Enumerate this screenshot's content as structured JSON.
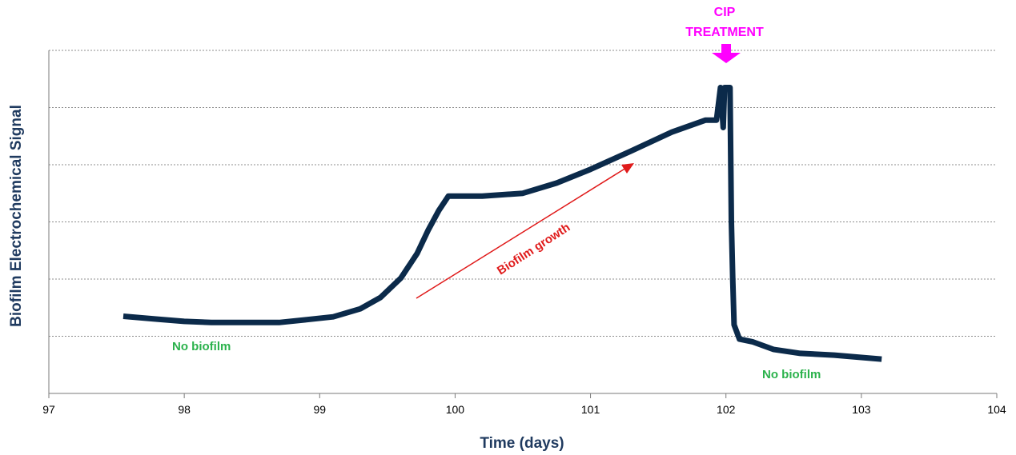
{
  "chart_data": {
    "type": "line",
    "title": "",
    "xlabel": "Time (days)",
    "ylabel": "Biofilm Electrochemical Signal",
    "xlim": [
      97,
      104
    ],
    "ylim": [
      0,
      6
    ],
    "x_ticks": [
      "97",
      "98",
      "99",
      "100",
      "101",
      "102",
      "103",
      "104"
    ],
    "grid": "horizontal-dashed",
    "series": [
      {
        "color": "#0b2a4a",
        "points": [
          [
            97.55,
            1.35
          ],
          [
            97.8,
            1.3
          ],
          [
            98.0,
            1.26
          ],
          [
            98.2,
            1.24
          ],
          [
            98.45,
            1.24
          ],
          [
            98.7,
            1.24
          ],
          [
            98.9,
            1.29
          ],
          [
            99.1,
            1.34
          ],
          [
            99.3,
            1.48
          ],
          [
            99.45,
            1.68
          ],
          [
            99.6,
            2.02
          ],
          [
            99.72,
            2.45
          ],
          [
            99.8,
            2.85
          ],
          [
            99.88,
            3.2
          ],
          [
            99.95,
            3.45
          ],
          [
            100.2,
            3.45
          ],
          [
            100.5,
            3.5
          ],
          [
            100.75,
            3.68
          ],
          [
            101.0,
            3.92
          ],
          [
            101.3,
            4.24
          ],
          [
            101.6,
            4.57
          ],
          [
            101.85,
            4.78
          ],
          [
            101.93,
            4.78
          ],
          [
            101.96,
            5.35
          ],
          [
            101.98,
            4.65
          ],
          [
            101.99,
            5.35
          ],
          [
            102.03,
            5.35
          ],
          [
            102.04,
            3.0
          ],
          [
            102.05,
            2.0
          ],
          [
            102.06,
            1.2
          ],
          [
            102.1,
            0.95
          ],
          [
            102.2,
            0.9
          ],
          [
            102.35,
            0.77
          ],
          [
            102.55,
            0.7
          ],
          [
            102.8,
            0.67
          ],
          [
            103.0,
            0.63
          ],
          [
            103.15,
            0.6
          ]
        ]
      }
    ],
    "annotations": {
      "no_biofilm_left": "No biofilm",
      "no_biofilm_right": "No biofilm",
      "growth": "Biofilm growth",
      "cip_line1": "CIP",
      "cip_line2": "TREATMENT"
    },
    "colors": {
      "line": "#0b2a4a",
      "growth_arrow": "#e01b1b",
      "no_biofilm": "#2bb24c",
      "cip": "#ff00ff"
    }
  }
}
